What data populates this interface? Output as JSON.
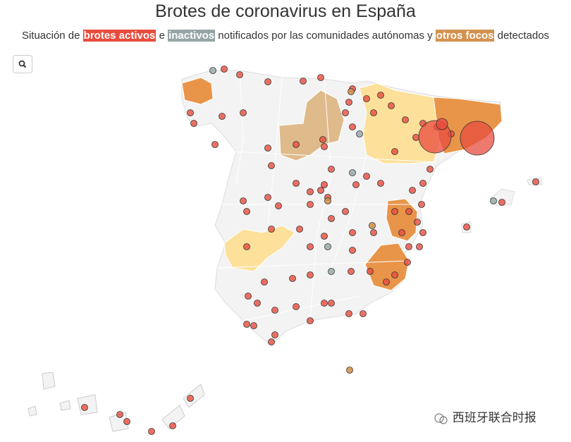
{
  "header": {
    "title": "Brotes de coronavirus en España",
    "subtitle": {
      "part1": "Situación de",
      "active": "brotes activos",
      "part2": "e",
      "inactive": "inactivos",
      "part3": "notificados por las comunidades autónomas y",
      "other": "otros focos",
      "part4": "detectados"
    }
  },
  "watermark": "西班牙联合时报"
}
